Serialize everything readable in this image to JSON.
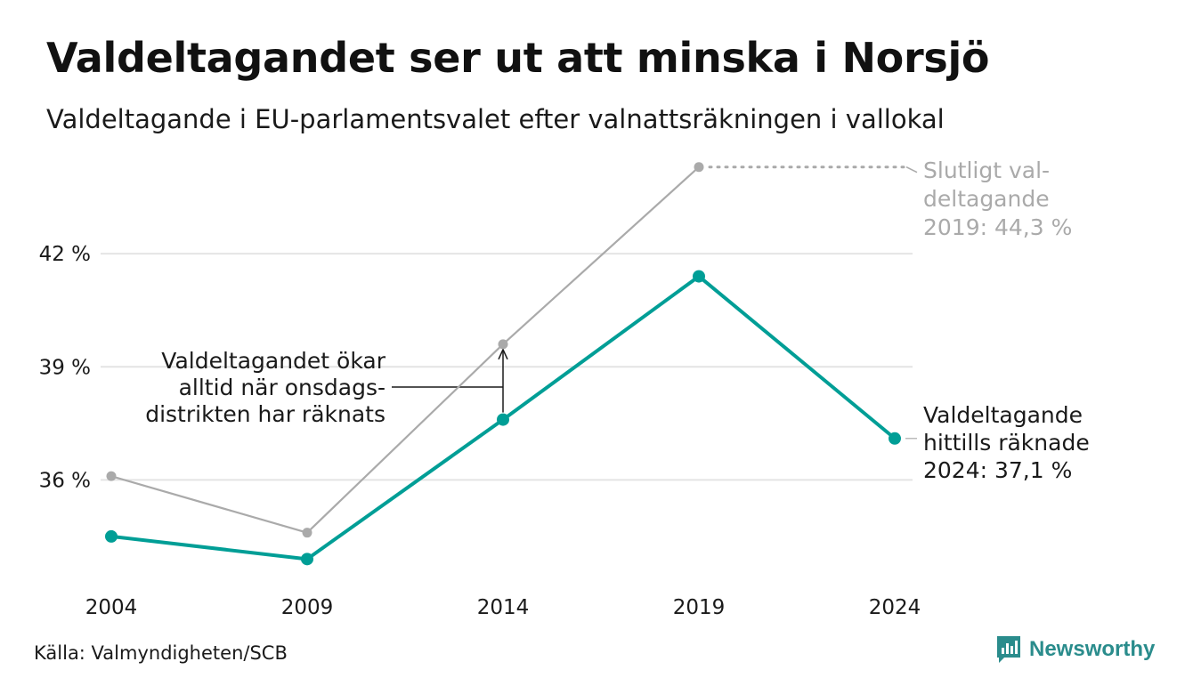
{
  "header": {
    "title": "Valdeltagandet ser ut att minska i Norsjö",
    "subtitle": "Valdeltagande i EU-parlamentsvalet efter valnattsräkningen i vallokal"
  },
  "chart_data": {
    "type": "line",
    "title": "Valdeltagandet ser ut att minska i Norsjö",
    "subtitle": "Valdeltagande i EU-parlamentsvalet efter valnattsräkningen i vallokal",
    "xlabel": "",
    "ylabel": "",
    "x": [
      "2004",
      "2009",
      "2014",
      "2019",
      "2024"
    ],
    "ylim": [
      33.2,
      44.6
    ],
    "yticks": [
      36,
      39,
      42
    ],
    "ytick_labels": [
      "36 %",
      "39 %",
      "42 %"
    ],
    "grid": true,
    "legend": "none",
    "series": [
      {
        "values": [
          36.1,
          34.6,
          39.6,
          44.3,
          null
        ],
        "color": "#aaaaaa"
      },
      {
        "values": [
          34.5,
          33.9,
          37.6,
          41.4,
          37.1
        ],
        "color": "#009e96"
      }
    ],
    "annotations": [
      {
        "lines": [
          "Slutligt val-",
          "deltagande",
          "2019: 44,3 %"
        ],
        "color": "#aaaaaa"
      },
      {
        "lines": [
          "Valdeltagande",
          "hittills räknade",
          "2024: 37,1 %"
        ],
        "color": "#1a1a1a"
      },
      {
        "lines": [
          "Valdeltagandet ökar",
          "alltid när onsdags-",
          "distrikten har räknats"
        ],
        "color": "#1a1a1a"
      }
    ]
  },
  "footer": {
    "source": "Källa: Valmyndigheten/SCB",
    "brand": "Newsworthy",
    "brand_color": "#2a8c8c"
  }
}
